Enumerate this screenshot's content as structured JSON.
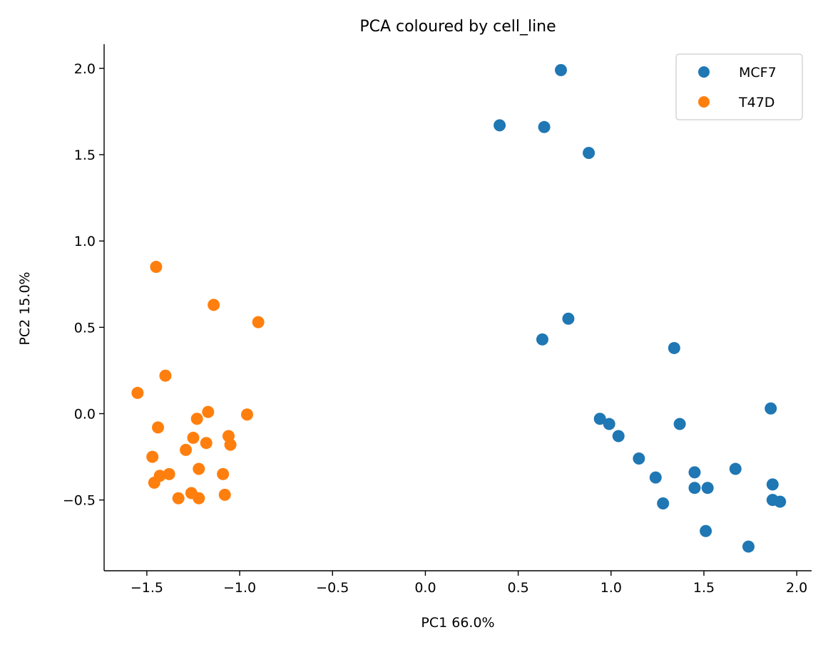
{
  "chart_data": {
    "type": "scatter",
    "title": "PCA coloured by cell_line",
    "xlabel": "PC1 66.0%",
    "ylabel": "PC2 15.0%",
    "xlim": [
      -1.73,
      2.08
    ],
    "ylim": [
      -0.91,
      2.14
    ],
    "xticks": [
      -1.5,
      -1.0,
      -0.5,
      0.0,
      0.5,
      1.0,
      1.5,
      2.0
    ],
    "xtick_labels": [
      "−1.5",
      "−1.0",
      "−0.5",
      "0.0",
      "0.5",
      "1.0",
      "1.5",
      "2.0"
    ],
    "yticks": [
      -0.5,
      0.0,
      0.5,
      1.0,
      1.5,
      2.0
    ],
    "ytick_labels": [
      "−0.5",
      "0.0",
      "0.5",
      "1.0",
      "1.5",
      "2.0"
    ],
    "grid": false,
    "legend_position": "top-right",
    "series": [
      {
        "name": "MCF7",
        "color": "#1f77b4",
        "points": [
          [
            0.73,
            1.99
          ],
          [
            0.4,
            1.67
          ],
          [
            0.64,
            1.66
          ],
          [
            0.88,
            1.51
          ],
          [
            0.77,
            0.55
          ],
          [
            0.63,
            0.43
          ],
          [
            1.34,
            0.38
          ],
          [
            0.94,
            -0.03
          ],
          [
            0.99,
            -0.06
          ],
          [
            1.04,
            -0.13
          ],
          [
            1.37,
            -0.06
          ],
          [
            1.86,
            0.03
          ],
          [
            1.15,
            -0.26
          ],
          [
            1.24,
            -0.37
          ],
          [
            1.45,
            -0.34
          ],
          [
            1.67,
            -0.32
          ],
          [
            1.45,
            -0.43
          ],
          [
            1.52,
            -0.43
          ],
          [
            1.28,
            -0.52
          ],
          [
            1.87,
            -0.41
          ],
          [
            1.87,
            -0.5
          ],
          [
            1.91,
            -0.51
          ],
          [
            1.51,
            -0.68
          ],
          [
            1.74,
            -0.77
          ]
        ]
      },
      {
        "name": "T47D",
        "color": "#ff7f0e",
        "points": [
          [
            -1.45,
            0.85
          ],
          [
            -1.14,
            0.63
          ],
          [
            -0.9,
            0.53
          ],
          [
            -1.4,
            0.22
          ],
          [
            -1.55,
            0.12
          ],
          [
            -1.17,
            0.01
          ],
          [
            -1.23,
            -0.03
          ],
          [
            -0.96,
            -0.005
          ],
          [
            -1.44,
            -0.08
          ],
          [
            -1.25,
            -0.14
          ],
          [
            -1.06,
            -0.13
          ],
          [
            -1.18,
            -0.17
          ],
          [
            -1.05,
            -0.18
          ],
          [
            -1.29,
            -0.21
          ],
          [
            -1.47,
            -0.25
          ],
          [
            -1.22,
            -0.32
          ],
          [
            -1.09,
            -0.35
          ],
          [
            -1.43,
            -0.36
          ],
          [
            -1.38,
            -0.35
          ],
          [
            -1.46,
            -0.4
          ],
          [
            -1.26,
            -0.46
          ],
          [
            -1.33,
            -0.49
          ],
          [
            -1.22,
            -0.49
          ],
          [
            -1.08,
            -0.47
          ]
        ]
      }
    ]
  }
}
